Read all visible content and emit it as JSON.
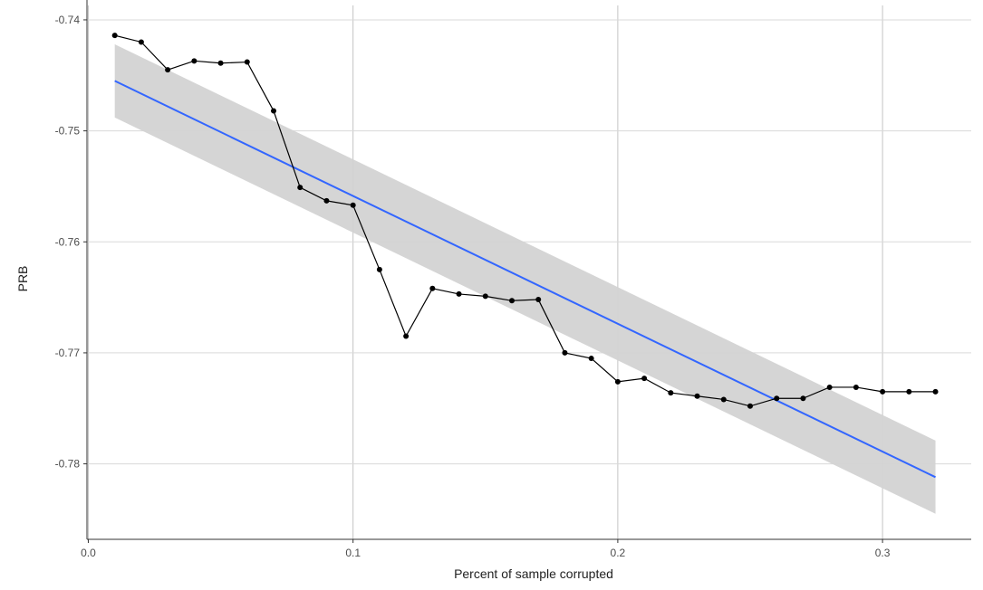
{
  "chart_data": {
    "type": "line",
    "title": "",
    "xlabel": "Percent of sample corrupted",
    "ylabel": "PRB",
    "xlim": [
      -0.0005,
      0.3335
    ],
    "ylim": [
      -0.7868,
      -0.7387
    ],
    "x_ticks": [
      0.0,
      0.1,
      0.2,
      0.3
    ],
    "x_tick_labels": [
      "0.0",
      "0.1",
      "0.2",
      "0.3"
    ],
    "y_ticks": [
      -0.74,
      -0.75,
      -0.76,
      -0.77,
      -0.78
    ],
    "y_tick_labels": [
      "-0.74",
      "-0.75",
      "-0.76",
      "-0.77",
      "-0.78"
    ],
    "grid": true,
    "legend": "none",
    "series": [
      {
        "x": [
          0.01,
          0.02,
          0.03,
          0.04,
          0.05,
          0.06,
          0.07,
          0.08,
          0.09,
          0.1,
          0.11,
          0.12,
          0.13,
          0.14,
          0.15,
          0.16,
          0.17,
          0.18,
          0.19,
          0.2,
          0.21,
          0.22,
          0.23,
          0.24,
          0.25,
          0.26,
          0.27,
          0.28,
          0.29,
          0.3,
          0.31,
          0.32
        ],
        "y": [
          -0.7414,
          -0.742,
          -0.7445,
          -0.7437,
          -0.7439,
          -0.7438,
          -0.7482,
          -0.7551,
          -0.7563,
          -0.7567,
          -0.7625,
          -0.7685,
          -0.7642,
          -0.7647,
          -0.7649,
          -0.7653,
          -0.7652,
          -0.77,
          -0.7705,
          -0.7726,
          -0.7723,
          -0.7736,
          -0.7739,
          -0.7742,
          -0.7748,
          -0.7741,
          -0.7741,
          -0.7731,
          -0.7731,
          -0.7735,
          -0.7735,
          -0.7735
        ],
        "color": "#000000",
        "markers": true
      }
    ],
    "trend": {
      "method": "linear",
      "x": [
        0.01,
        0.32
      ],
      "y": [
        -0.7455,
        -0.7812
      ],
      "ci_lower": [
        -0.7488,
        -0.7845
      ],
      "ci_upper": [
        -0.7422,
        -0.7779
      ],
      "color": "#3366ff",
      "band_color": "#d3d3d3"
    }
  }
}
